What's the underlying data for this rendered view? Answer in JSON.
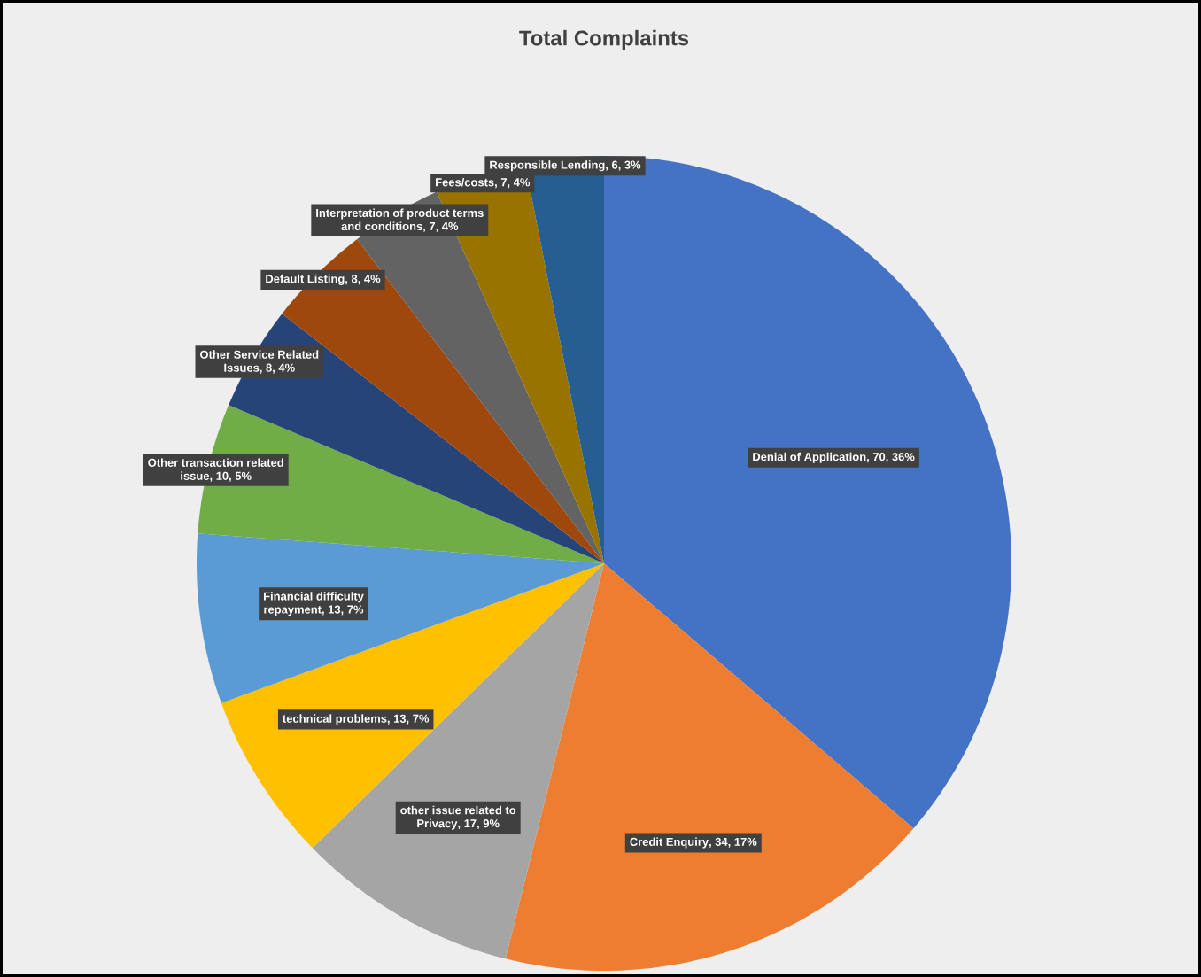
{
  "chart_data": {
    "type": "pie",
    "title": "Total Complaints",
    "categories": [
      "Denial of Application",
      "Credit Enquiry",
      "other issue related to Privacy",
      "technical problems",
      "Financial difficulty repayment",
      "Other transaction related issue",
      "Other Service Related Issues",
      "Default Listing",
      "Interpretation of product terms and conditions",
      "Fees/costs",
      "Responsible Lending"
    ],
    "values": [
      70,
      34,
      17,
      13,
      13,
      10,
      8,
      8,
      7,
      7,
      6
    ],
    "value_labels": [
      ", 70, 36%",
      ", 34, 17%",
      ", 17, 9%",
      ", 13, 7%",
      ", 13, 7%",
      ", 10, 5%",
      ", 8, 4%",
      ", 8, 4%",
      ", 7, 4%",
      ", 7, 4%",
      ", 6, 3%"
    ],
    "colors": [
      "#4472c4",
      "#ed7d31",
      "#a5a5a5",
      "#ffc000",
      "#5b9bd5",
      "#70ad47",
      "#264478",
      "#9e480e",
      "#636363",
      "#997300",
      "#255e91"
    ]
  }
}
